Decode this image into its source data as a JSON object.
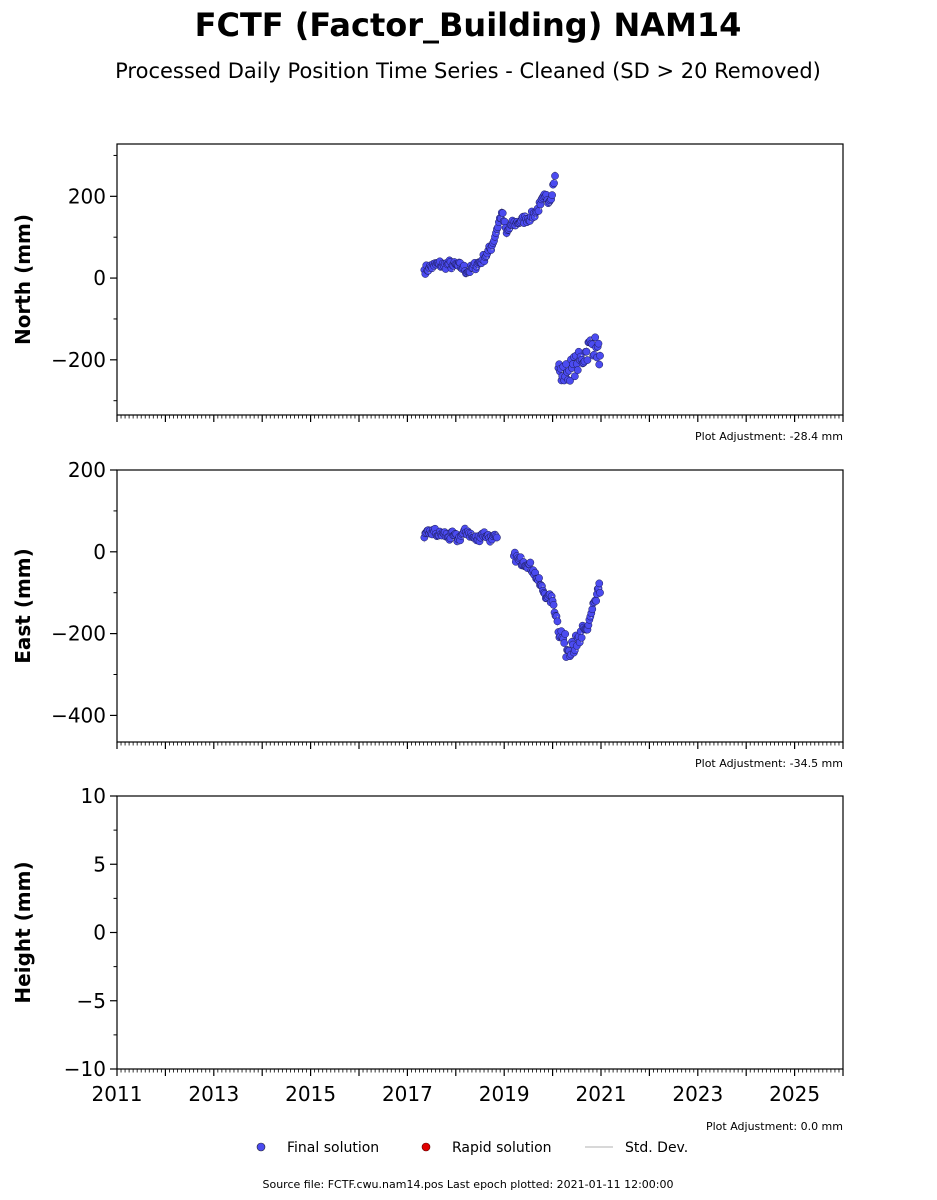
{
  "title": "FCTF (Factor_Building) NAM14",
  "subtitle": "Processed Daily Position Time Series - Cleaned (SD > 20 Removed)",
  "footer": "Source file: FCTF.cwu.nam14.pos  Last epoch plotted: 2021-01-11 12:00:00",
  "legend": {
    "final": "Final solution",
    "rapid": "Rapid solution",
    "std": "Std. Dev."
  },
  "colors": {
    "final": "#4b4bf0",
    "rapid": "#e00000",
    "std": "#cccccc",
    "axis": "#000000"
  },
  "chart_data": [
    {
      "type": "scatter",
      "ylabel": "North (mm)",
      "ylim": [
        -335,
        328
      ],
      "yticks": [
        -200,
        0,
        200
      ],
      "yticklabels": [
        "−200",
        "0",
        "200"
      ],
      "xlim": [
        2011,
        2026
      ],
      "adjustment": "Plot Adjustment: -28.4 mm",
      "series": [
        {
          "x": [
            2017.35,
            2017.45,
            2017.55,
            2017.65,
            2017.75,
            2017.85,
            2017.95,
            2018.05,
            2018.15,
            2018.25,
            2018.35,
            2018.45,
            2018.55,
            2018.65,
            2018.75,
            2018.85,
            2018.95,
            2019.05,
            2019.15,
            2019.25,
            2019.35,
            2019.45,
            2019.55,
            2019.65,
            2019.75,
            2019.85,
            2019.95,
            2020.05,
            2020.12,
            2020.2,
            2020.3,
            2020.4,
            2020.5,
            2020.6,
            2020.7,
            2020.8,
            2020.9,
            2020.98
          ],
          "y": [
            20,
            25,
            30,
            35,
            30,
            35,
            30,
            30,
            25,
            15,
            25,
            35,
            45,
            60,
            80,
            120,
            160,
            110,
            130,
            135,
            140,
            145,
            150,
            160,
            180,
            200,
            190,
            250,
            -220,
            -240,
            -230,
            -220,
            -210,
            -200,
            -180,
            -160,
            -170,
            -190
          ]
        }
      ]
    },
    {
      "type": "scatter",
      "ylabel": "East (mm)",
      "ylim": [
        -465,
        200
      ],
      "yticks": [
        -400,
        -200,
        0,
        200
      ],
      "yticklabels": [
        "−400",
        "−200",
        "0",
        "200"
      ],
      "xlim": [
        2011,
        2026
      ],
      "adjustment": "Plot Adjustment: -34.5 mm",
      "series": [
        {
          "x": [
            2017.35,
            2017.45,
            2017.55,
            2017.65,
            2017.75,
            2017.85,
            2017.95,
            2018.05,
            2018.15,
            2018.25,
            2018.35,
            2018.45,
            2018.55,
            2018.65,
            2018.75,
            2018.85,
            2019.2,
            2019.3,
            2019.4,
            2019.5,
            2019.6,
            2019.7,
            2019.8,
            2019.9,
            2020.0,
            2020.1,
            2020.2,
            2020.3,
            2020.4,
            2020.5,
            2020.6,
            2020.7,
            2020.8,
            2020.9,
            2020.98
          ],
          "y": [
            35,
            45,
            50,
            40,
            45,
            35,
            40,
            30,
            45,
            50,
            35,
            30,
            45,
            40,
            30,
            35,
            -10,
            -20,
            -25,
            -30,
            -45,
            -70,
            -95,
            -110,
            -120,
            -170,
            -210,
            -240,
            -220,
            -230,
            -210,
            -190,
            -150,
            -120,
            -100
          ]
        }
      ]
    },
    {
      "type": "scatter",
      "ylabel": "Height (mm)",
      "ylim": [
        -10,
        10
      ],
      "yticks": [
        -10,
        -5,
        0,
        5,
        10
      ],
      "yticklabels": [
        "−10",
        "−5",
        "0",
        "5",
        "10"
      ],
      "xlim": [
        2011,
        2026
      ],
      "xticks": [
        2011,
        2013,
        2015,
        2017,
        2019,
        2021,
        2023,
        2025
      ],
      "xticklabels": [
        "2011",
        "2013",
        "2015",
        "2017",
        "2019",
        "2021",
        "2023",
        "2025"
      ],
      "adjustment": "Plot Adjustment: 0.0 mm",
      "series": [
        {
          "x": [],
          "y": []
        }
      ]
    }
  ]
}
